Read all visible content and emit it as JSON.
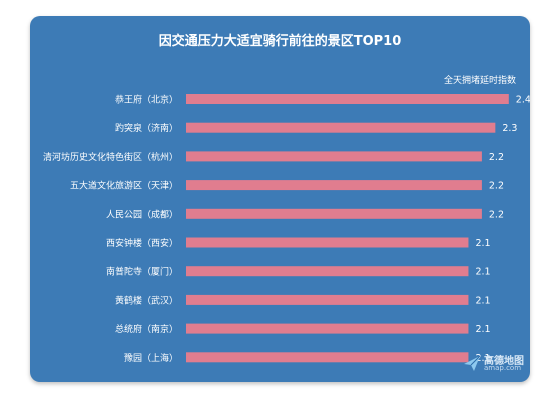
{
  "chart_data": {
    "type": "bar",
    "orientation": "horizontal",
    "title": "因交通压力大适宜骑行前往的景区TOP10",
    "value_label": "全天拥堵延时指数",
    "categories": [
      "恭王府（北京）",
      "趵突泉（济南）",
      "清河坊历史文化特色街区（杭州）",
      "五大道文化旅游区（天津）",
      "人民公园（成都）",
      "西安钟楼（西安）",
      "南普陀寺（厦门）",
      "黄鹤楼（武汉）",
      "总统府（南京）",
      "豫园（上海）"
    ],
    "values": [
      2.4,
      2.3,
      2.2,
      2.2,
      2.2,
      2.1,
      2.1,
      2.1,
      2.1,
      2.1
    ],
    "bar_color": "#e07d8f",
    "background_color": "#3d7bb6",
    "grid": false,
    "legend": "none"
  },
  "watermark": {
    "name": "高德地图",
    "domain": "amap.com"
  }
}
